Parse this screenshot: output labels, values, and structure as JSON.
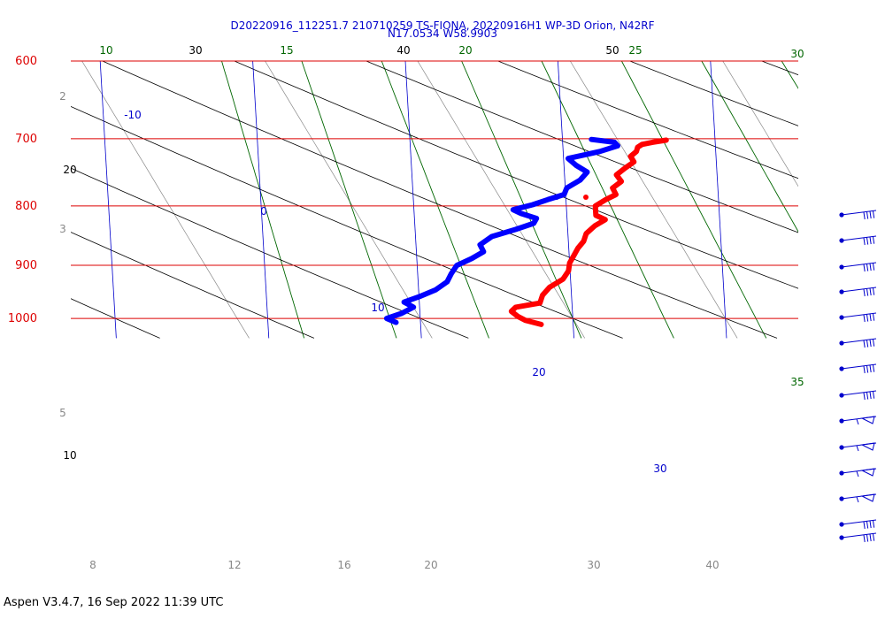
{
  "header": {
    "line1": "D20220916_112251.7 210710259 TS-FIONA, 20220916H1 WP-3D Orion, N42RF",
    "line2": "N17.0534 W58.9903"
  },
  "footer": {
    "text": "Aspen V3.4.7, 16 Sep 2022  11:39 UTC"
  },
  "chart_data": {
    "type": "skew-t",
    "title": "D20220916_112251.7 210710259 TS-FIONA, 20220916H1 WP-3D Orion, N42RF",
    "subtitle": "N17.0534 W58.9903",
    "pressure_levels": [
      {
        "p": 600,
        "label": "600"
      },
      {
        "p": 700,
        "label": "700"
      },
      {
        "p": 800,
        "label": "800"
      },
      {
        "p": 900,
        "label": "900"
      },
      {
        "p": 1000,
        "label": "1000"
      }
    ],
    "ylim": [
      1040,
      600
    ],
    "bottom_temperature_labels": [
      "8",
      "12",
      "16",
      "20",
      "30",
      "40"
    ],
    "isotherm_labels": [
      "-10",
      "0",
      "10",
      "20",
      "30"
    ],
    "dry_adiabat_labels": [
      "10",
      "20",
      "30",
      "40",
      "50"
    ],
    "moist_adiabat_labels": [
      "10",
      "15",
      "20",
      "25",
      "30",
      "35"
    ],
    "mixing_ratio_labels": [
      "2",
      "3",
      "5"
    ],
    "colors": {
      "isobar": "#dd0000",
      "isotherm": "#0000cc",
      "dry_adiabat": "#000000",
      "moist_adiabat": "#006600",
      "mixing_ratio": "#888888",
      "temperature": "#ff0000",
      "dewpoint": "#0000ff",
      "wind_barb": "#0000cc"
    },
    "series": [
      {
        "name": "",
        "color": "#ff0000",
        "points": [
          {
            "p": 702,
            "t": 16.8
          },
          {
            "p": 705,
            "t": 15.9
          },
          {
            "p": 708,
            "t": 15.2
          },
          {
            "p": 712,
            "t": 14.9
          },
          {
            "p": 718,
            "t": 14.8
          },
          {
            "p": 725,
            "t": 14.4
          },
          {
            "p": 733,
            "t": 14.6
          },
          {
            "p": 742,
            "t": 14.0
          },
          {
            "p": 752,
            "t": 13.4
          },
          {
            "p": 762,
            "t": 13.7
          },
          {
            "p": 772,
            "t": 13.1
          },
          {
            "p": 782,
            "t": 13.3
          },
          {
            "p": 790,
            "t": 12.6
          },
          {
            "p": 800,
            "t": 11.9
          },
          {
            "p": 808,
            "t": 11.9
          },
          {
            "p": 815,
            "t": 11.9
          },
          {
            "p": 822,
            "t": 12.5
          },
          {
            "p": 832,
            "t": 11.8
          },
          {
            "p": 845,
            "t": 11.2
          },
          {
            "p": 858,
            "t": 11.0
          },
          {
            "p": 870,
            "t": 10.6
          },
          {
            "p": 883,
            "t": 10.3
          },
          {
            "p": 896,
            "t": 10.0
          },
          {
            "p": 910,
            "t": 9.9
          },
          {
            "p": 925,
            "t": 9.5
          },
          {
            "p": 940,
            "t": 8.6
          },
          {
            "p": 955,
            "t": 8.1
          },
          {
            "p": 970,
            "t": 7.9
          },
          {
            "p": 978,
            "t": 6.3
          },
          {
            "p": 986,
            "t": 6.0
          },
          {
            "p": 996,
            "t": 6.4
          },
          {
            "p": 1004,
            "t": 6.9
          },
          {
            "p": 1012,
            "t": 7.9
          }
        ]
      },
      {
        "name": "",
        "color": "#0000ff",
        "points": [
          {
            "p": 701,
            "t": 11.9
          },
          {
            "p": 705,
            "t": 13.4
          },
          {
            "p": 710,
            "t": 13.6
          },
          {
            "p": 718,
            "t": 12.4
          },
          {
            "p": 728,
            "t": 10.3
          },
          {
            "p": 738,
            "t": 10.8
          },
          {
            "p": 748,
            "t": 11.5
          },
          {
            "p": 760,
            "t": 11.0
          },
          {
            "p": 772,
            "t": 10.1
          },
          {
            "p": 782,
            "t": 9.9
          },
          {
            "p": 790,
            "t": 8.8
          },
          {
            "p": 798,
            "t": 7.8
          },
          {
            "p": 806,
            "t": 6.5
          },
          {
            "p": 812,
            "t": 7.0
          },
          {
            "p": 820,
            "t": 8.0
          },
          {
            "p": 828,
            "t": 7.8
          },
          {
            "p": 838,
            "t": 6.6
          },
          {
            "p": 850,
            "t": 5.0
          },
          {
            "p": 864,
            "t": 4.2
          },
          {
            "p": 876,
            "t": 4.4
          },
          {
            "p": 888,
            "t": 3.6
          },
          {
            "p": 900,
            "t": 2.6
          },
          {
            "p": 915,
            "t": 2.2
          },
          {
            "p": 930,
            "t": 1.9
          },
          {
            "p": 945,
            "t": 1.1
          },
          {
            "p": 958,
            "t": 0.0
          },
          {
            "p": 968,
            "t": -1.0
          },
          {
            "p": 978,
            "t": -0.4
          },
          {
            "p": 990,
            "t": -1.2
          },
          {
            "p": 1000,
            "t": -2.2
          },
          {
            "p": 1008,
            "t": -1.6
          }
        ]
      }
    ],
    "wind_barbs": [
      {
        "kind": "pennant-bars"
      },
      {
        "kind": "pennant-bars"
      },
      {
        "kind": "pennant-bars"
      },
      {
        "kind": "pennant-bars"
      },
      {
        "kind": "pennant-bars"
      },
      {
        "kind": "pennant-bars"
      },
      {
        "kind": "pennant-bars"
      },
      {
        "kind": "pennant-bars"
      },
      {
        "kind": "flag"
      },
      {
        "kind": "flag"
      },
      {
        "kind": "flag"
      },
      {
        "kind": "flag"
      },
      {
        "kind": "pennant-bars"
      },
      {
        "kind": "pennant-bars"
      }
    ]
  }
}
